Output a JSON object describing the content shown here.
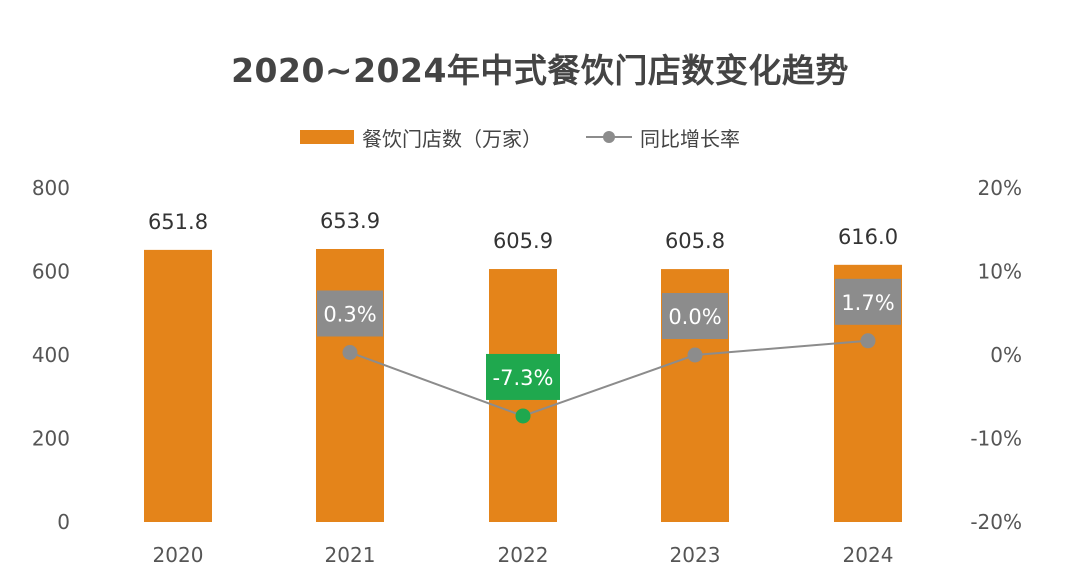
{
  "chart_data": {
    "type": "bar",
    "title": "2020~2024年中式餐饮门店数变化趋势",
    "categories": [
      "2020",
      "2021",
      "2022",
      "2023",
      "2024"
    ],
    "series": [
      {
        "name": "餐饮门店数（万家）",
        "type": "bar",
        "axis": "left",
        "values": [
          651.8,
          653.9,
          605.9,
          605.8,
          616.0
        ],
        "labels": [
          "651.8",
          "653.9",
          "605.9",
          "605.8",
          "616.0"
        ],
        "color": "#E4841A"
      },
      {
        "name": "同比增长率",
        "type": "line",
        "axis": "right",
        "values": [
          null,
          0.3,
          -7.3,
          0.0,
          1.7
        ],
        "labels": [
          null,
          "0.3%",
          "-7.3%",
          "0.0%",
          "1.7%"
        ],
        "color": "#8C8C8C"
      }
    ],
    "ylim": [
      0,
      800
    ],
    "yticks": [
      "0",
      "200",
      "400",
      "600",
      "800"
    ],
    "y2lim": [
      -20,
      20
    ],
    "y2ticks": [
      "-20%",
      "-10%",
      "0%",
      "10%",
      "20%"
    ],
    "legend_position": "top-center",
    "grid": false,
    "colors": {
      "bar": "#E4841A",
      "line": "#8C8C8C",
      "label_box": "#8C8C8C",
      "negative_highlight": "#1FA84E"
    }
  }
}
